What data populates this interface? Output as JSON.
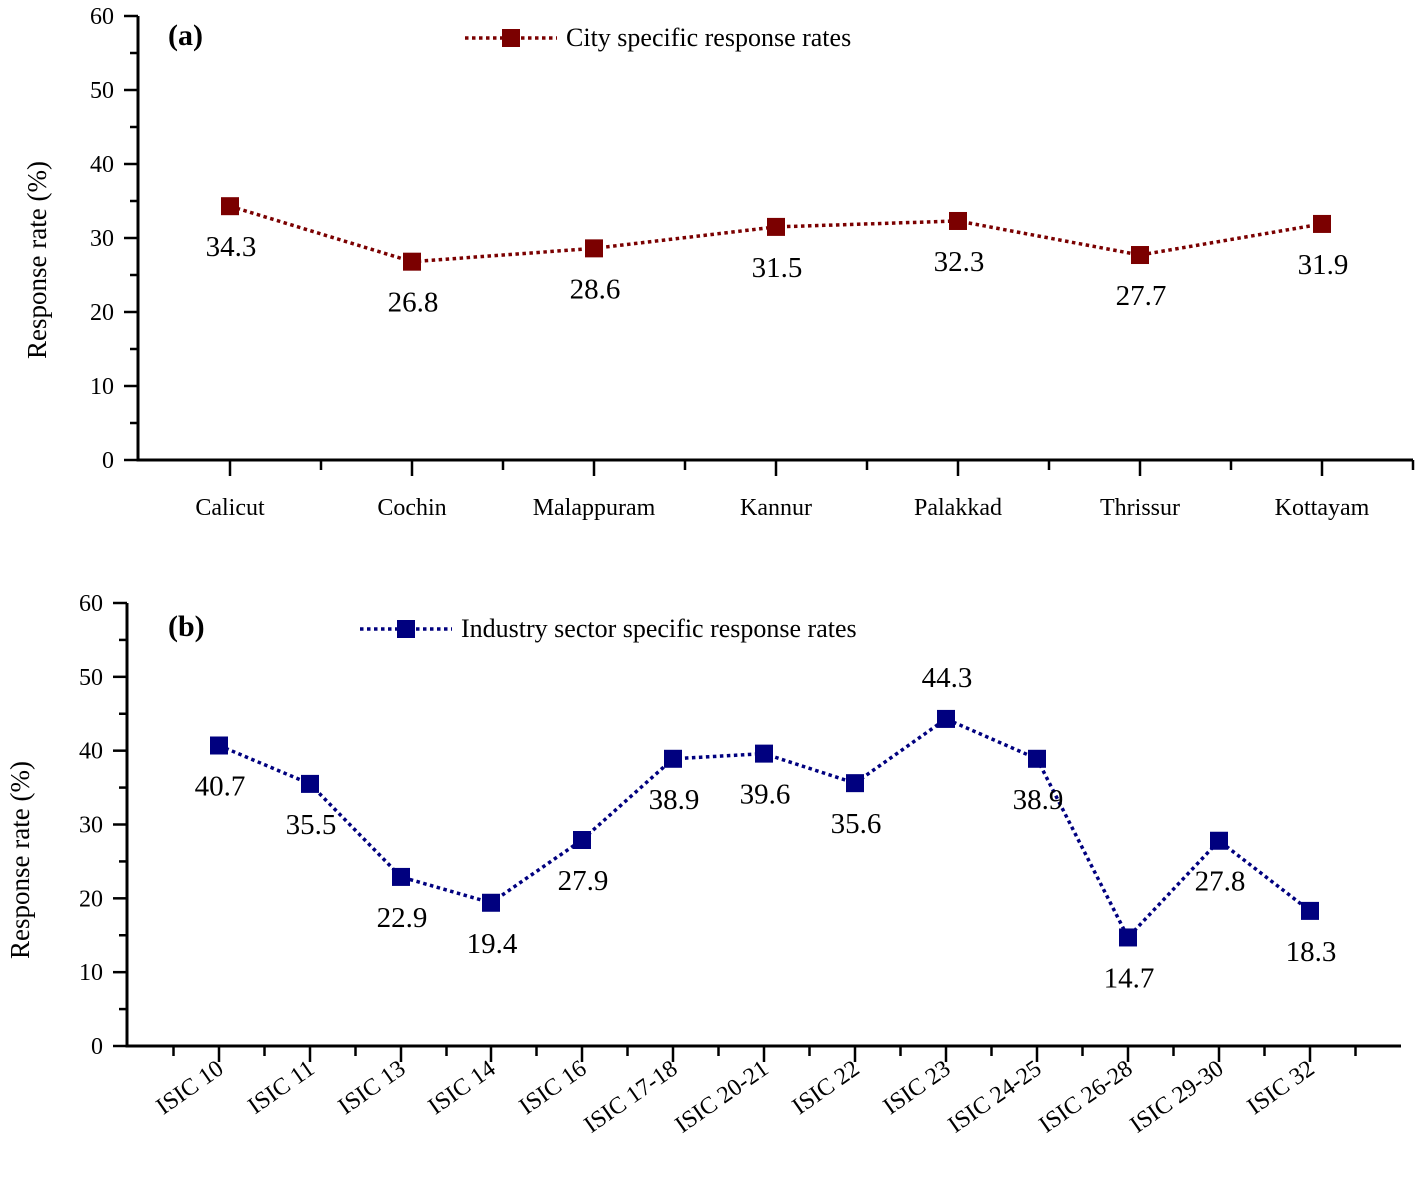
{
  "chart_data": [
    {
      "type": "line",
      "panel_label": "(a)",
      "title": "",
      "xlabel": "",
      "ylabel": "Response rate (%)",
      "ylim": [
        0,
        60
      ],
      "yticks": [
        0,
        10,
        20,
        30,
        40,
        50,
        60
      ],
      "grid": false,
      "legend_position": "top-center",
      "categories": [
        "Calicut",
        "Cochin",
        "Malappuram",
        "Kannur",
        "Palakkad",
        "Thrissur",
        "Kottayam"
      ],
      "series": [
        {
          "name": "City specific response rates",
          "color": "#7b0000",
          "line_style": "dotted",
          "marker": "square",
          "values": [
            34.3,
            26.8,
            28.6,
            31.5,
            32.3,
            27.7,
            31.9
          ],
          "labels": [
            "34.3",
            "26.8",
            "28.6",
            "31.5",
            "32.3",
            "27.7",
            "31.9"
          ]
        }
      ]
    },
    {
      "type": "line",
      "panel_label": "(b)",
      "title": "",
      "xlabel": "",
      "ylabel": "Response rate (%)",
      "ylim": [
        0,
        60
      ],
      "yticks": [
        0,
        10,
        20,
        30,
        40,
        50,
        60
      ],
      "grid": false,
      "legend_position": "top-center",
      "categories": [
        "ISIC 10",
        "ISIC 11",
        "ISIC 13",
        "ISIC 14",
        "ISIC 16",
        "ISIC 17-18",
        "ISIC 20-21",
        "ISIC 22",
        "ISIC 23",
        "ISIC 24-25",
        "ISIC 26-28",
        "ISIC 29-30",
        "ISIC 32"
      ],
      "series": [
        {
          "name": "Industry sector specific response rates",
          "color": "#00007f",
          "line_style": "dotted",
          "marker": "square",
          "values": [
            40.7,
            35.5,
            22.9,
            19.4,
            27.9,
            38.9,
            39.6,
            35.6,
            44.3,
            38.9,
            14.7,
            27.8,
            18.3
          ],
          "labels": [
            "40.7",
            "35.5",
            "22.9",
            "19.4",
            "27.9",
            "38.9",
            "39.6",
            "35.6",
            "44.3",
            "38.9",
            "14.7",
            "27.8",
            "18.3"
          ]
        }
      ]
    }
  ]
}
